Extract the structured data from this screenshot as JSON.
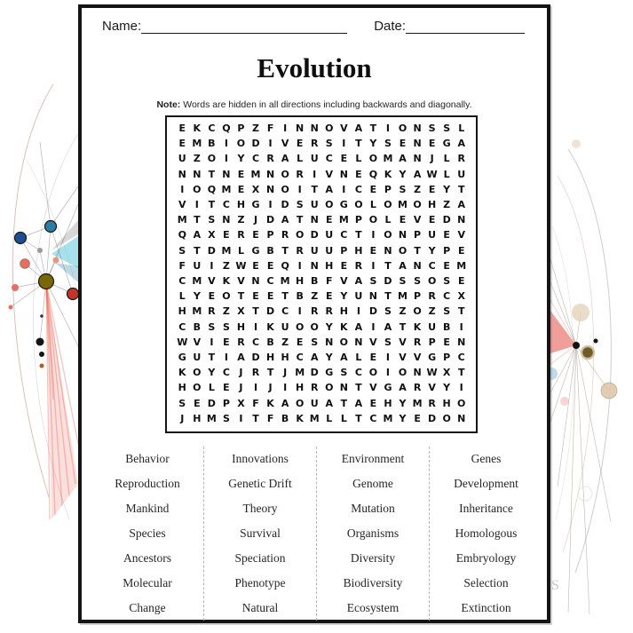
{
  "page": {
    "name_label": "Name:",
    "date_label": "Date:",
    "title": "Evolution",
    "note_bold": "Note:",
    "note_text": " Words are hidden in all directions including backwards and diagonally."
  },
  "grid": {
    "rows": [
      "EKCQPZFINNOVATIONSSL",
      "EMBIODIVERSITYSENEGA",
      "UZOIYCRALUCELOMANJLR",
      "NNTNEMNORIVNEQKYAWLU",
      "IOQMEXNOITAICEPSZEYT",
      "VITCHGIDSUOGOLOMOHZA",
      "MTSNZJDATNEMPOLEVEDN",
      "QAXEREPRODUCTIONPUEV",
      "STDMLGBTRUUPHENOTYPE",
      "FUIZWEEQINHERITANCEM",
      "CMVKVNCMHBFVASDSSOSE",
      "LYEOTEETBZEYUNTMPRCX",
      "HMRZXTDCIRRHIDSZOZST",
      "CBSSHIKUOOYKAIATKUBI",
      "WVIERCBZESNONVSVRPEN",
      "GUTIADHHCAYALEIVVGPC",
      "KOYCJRTJMDGSCOIONWXT",
      "HOLEJIJIHRONTVGARVYI",
      "SEDPXFKAOUATAEHYMRHO",
      "JHMSITFBKMLLTCMYEDON"
    ]
  },
  "word_list": {
    "columns": [
      [
        "Behavior",
        "Reproduction",
        "Mankind",
        "Species",
        "Ancestors",
        "Molecular",
        "Change"
      ],
      [
        "Innovations",
        "Genetic Drift",
        "Theory",
        "Survival",
        "Speciation",
        "Phenotype",
        "Natural"
      ],
      [
        "Environment",
        "Genome",
        "Mutation",
        "Organisms",
        "Diversity",
        "Biodiversity",
        "Ecosystem"
      ],
      [
        "Genes",
        "Development",
        "Inheritance",
        "Homologous",
        "Embryology",
        "Selection",
        "Extinction"
      ]
    ]
  },
  "decor": {
    "watermark_fragment": "S",
    "colors": {
      "node_blue": "#1d4e90",
      "node_teal": "#2d7ca3",
      "node_olive": "#796708",
      "node_red": "#c53527",
      "node_salmon": "#e4705f",
      "node_dark_olive": "#6e5d26",
      "ink": "#1a1a1a"
    }
  }
}
